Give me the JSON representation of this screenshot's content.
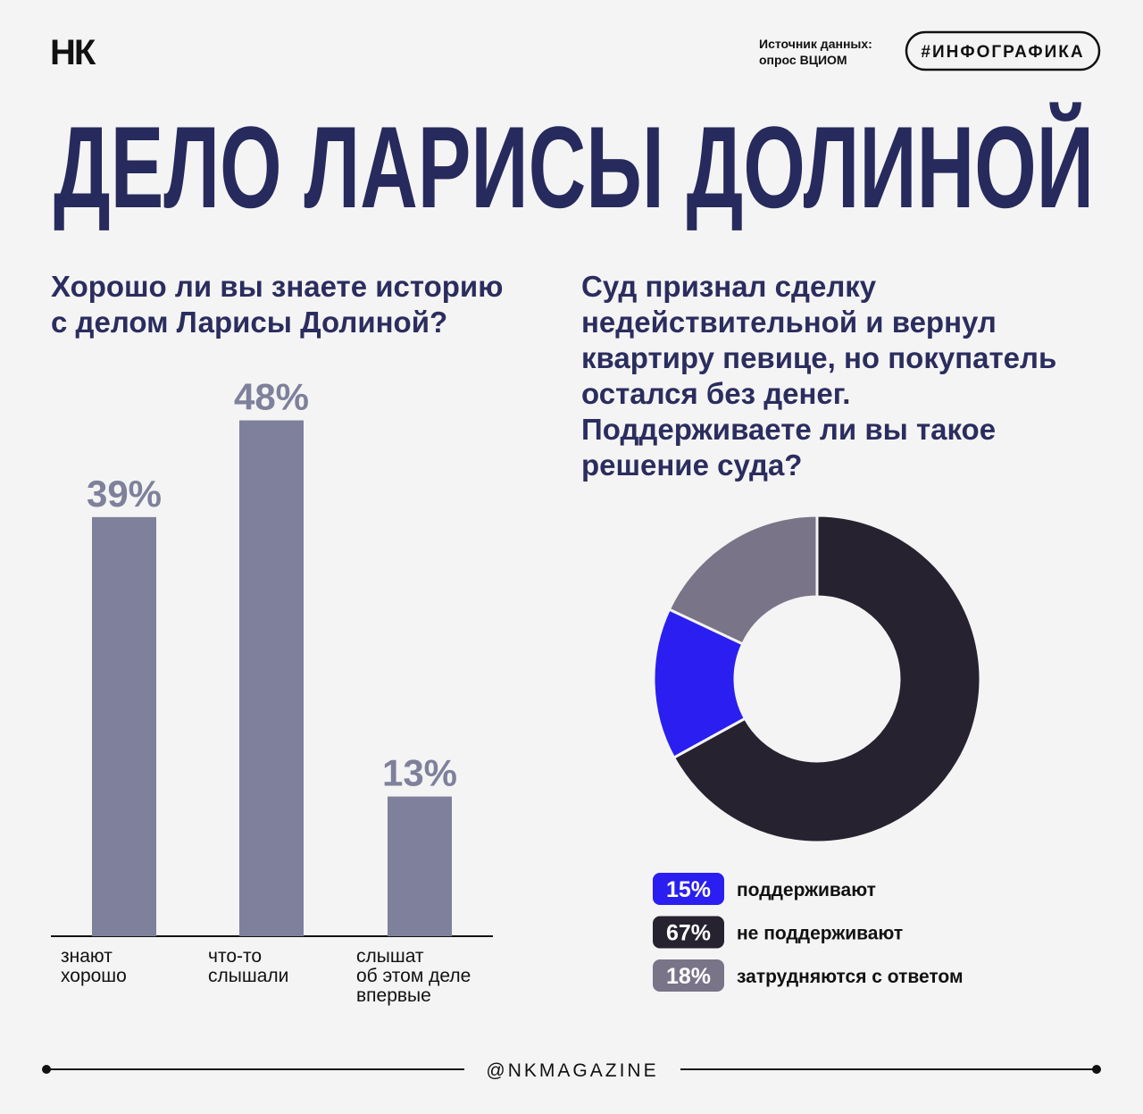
{
  "header": {
    "logo": "НК",
    "source": "Источник данных:\nопрос ВЦИОМ",
    "tag": "#ИНФОГРАФИКА",
    "title": "ДЕЛО ЛАРИСЫ ДОЛИНОЙ"
  },
  "chart_data": [
    {
      "type": "bar",
      "title": "Хорошо ли вы знаете историю\nс делом Ларисы Долиной?",
      "categories": [
        "знают\nхорошо",
        "что-то\nслышали",
        "слышат\nоб этом деле\nвпервые"
      ],
      "values": [
        39,
        48,
        13
      ],
      "value_labels": [
        "39%",
        "48%",
        "13%"
      ],
      "color": "#7f809b"
    },
    {
      "type": "pie",
      "title": "Суд признал сделку\nнедействительной и вернул\nквартиру певице, но покупатель\nостался без денег.\nПоддерживаете ли вы такое\nрешение суда?",
      "categories": [
        "поддерживают",
        "не поддерживают",
        "затрудняются с ответом"
      ],
      "values": [
        15,
        67,
        18
      ],
      "value_labels": [
        "15%",
        "67%",
        "18%"
      ],
      "colors": [
        "#2a1ff0",
        "#27222f",
        "#7a7488"
      ]
    }
  ],
  "footer": {
    "handle": "@NKMAGAZINE"
  }
}
